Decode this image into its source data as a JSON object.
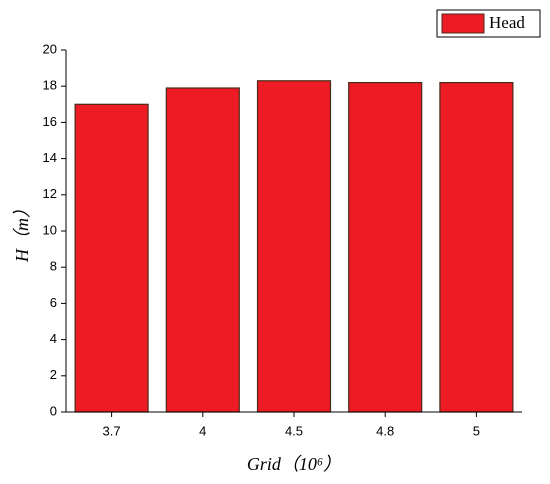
{
  "chart_data": {
    "type": "bar",
    "x_label": "Grid（10⁶）",
    "y_label": "H（m）",
    "categories": [
      "3.7",
      "4",
      "4.5",
      "4.8",
      "5"
    ],
    "series": [
      {
        "name": "Head",
        "color": "#ed1c24",
        "values": [
          17.0,
          17.9,
          18.3,
          18.2,
          18.2
        ]
      }
    ],
    "ylim": [
      0,
      20
    ],
    "yticks": [
      0,
      2,
      4,
      6,
      8,
      10,
      12,
      14,
      16,
      18,
      20
    ],
    "legend": "top-right"
  }
}
